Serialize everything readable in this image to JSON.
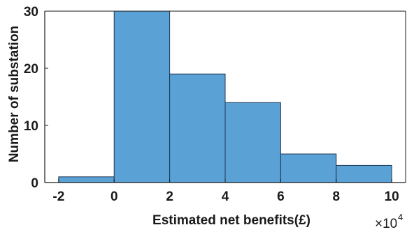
{
  "chart_data": {
    "type": "bar",
    "subtype": "histogram",
    "bin_edges": [
      -2,
      0,
      2,
      4,
      6,
      8,
      10
    ],
    "values": [
      1,
      30,
      19,
      14,
      5,
      3
    ],
    "xlabel": "Estimated net benefits(£)",
    "ylabel": "Number of substation",
    "x_exponent": {
      "base": "×10",
      "power": "4"
    },
    "x_ticks": [
      -2,
      0,
      2,
      4,
      6,
      8,
      10
    ],
    "y_ticks": [
      0,
      10,
      20,
      30
    ],
    "xlim": [
      -2.5,
      10.5
    ],
    "ylim": [
      0,
      30
    ],
    "grid": false,
    "legend": "none",
    "colors": {
      "bar_fill": "#5aa2d6",
      "bar_edge": "#1f3552",
      "axis": "#1a1a1a"
    }
  }
}
